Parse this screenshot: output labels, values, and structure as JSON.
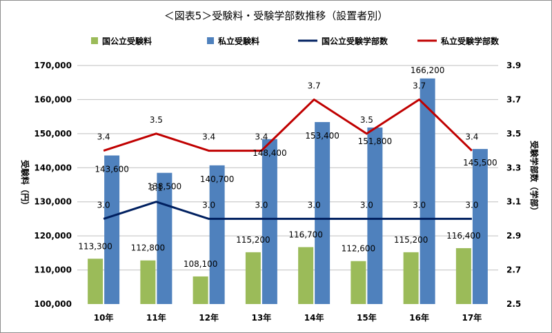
{
  "chart_data": {
    "type": "bar",
    "title": "＜図表5＞受験料・受験学部数推移（設置者別）",
    "categories": [
      "10年",
      "11年",
      "12年",
      "13年",
      "14年",
      "15年",
      "16年",
      "17年"
    ],
    "ylabel_left": "受験料（円）",
    "ylabel_right": "受験学部数（学部）",
    "ylim_left": [
      100000,
      170000
    ],
    "yticks_left": [
      "100,000",
      "110,000",
      "120,000",
      "130,000",
      "140,000",
      "150,000",
      "160,000",
      "170,000"
    ],
    "ylim_right": [
      2.5,
      3.9
    ],
    "yticks_right": [
      "2.5",
      "2.7",
      "2.9",
      "3.1",
      "3.3",
      "3.5",
      "3.7",
      "3.9"
    ],
    "legend_position": "top",
    "series": [
      {
        "name": "国公立受験料",
        "kind": "bar",
        "axis": "left",
        "color": "#9bbb59",
        "values": [
          113300,
          112800,
          108100,
          115200,
          116700,
          112600,
          115200,
          116400
        ],
        "labels": [
          "113,300",
          "112,800",
          "108,100",
          "115,200",
          "116,700",
          "112,600",
          "115,200",
          "116,400"
        ]
      },
      {
        "name": "私立受験料",
        "kind": "bar",
        "axis": "left",
        "color": "#4f81bd",
        "values": [
          143600,
          138500,
          140700,
          148400,
          153400,
          151800,
          166200,
          145500
        ],
        "labels": [
          "143,600",
          "138,500",
          "140,700",
          "148,400",
          "153,400",
          "151,800",
          "166,200",
          "145,500"
        ]
      },
      {
        "name": "国公立受験学部数",
        "kind": "line",
        "axis": "right",
        "color": "#002060",
        "values": [
          3.0,
          3.1,
          3.0,
          3.0,
          3.0,
          3.0,
          3.0,
          3.0
        ],
        "labels": [
          "3.0",
          "3.1",
          "3.0",
          "3.0",
          "3.0",
          "3.0",
          "3.0",
          "3.0"
        ]
      },
      {
        "name": "私立受験学部数",
        "kind": "line",
        "axis": "right",
        "color": "#c00000",
        "values": [
          3.4,
          3.5,
          3.4,
          3.4,
          3.7,
          3.5,
          3.7,
          3.4
        ],
        "labels": [
          "3.4",
          "3.5",
          "3.4",
          "3.4",
          "3.7",
          "3.5",
          "3.7",
          "3.4"
        ]
      }
    ]
  }
}
